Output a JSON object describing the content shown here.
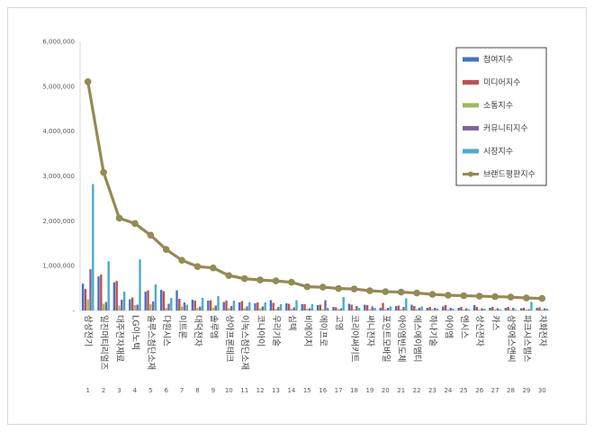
{
  "chart_data": {
    "type": "bar",
    "title": "",
    "xlabel": "",
    "ylabel": "",
    "ylim": [
      0,
      6000000
    ],
    "yticks": [
      0,
      1000000,
      2000000,
      3000000,
      4000000,
      5000000,
      6000000
    ],
    "ytick_labels": [
      "-",
      "1,000,000",
      "2,000,000",
      "3,000,000",
      "4,000,000",
      "5,000,000",
      "6,000,000"
    ],
    "grid": false,
    "legend_position": "top-right",
    "ranks": [
      "1",
      "2",
      "3",
      "4",
      "5",
      "6",
      "7",
      "8",
      "9",
      "10",
      "11",
      "12",
      "13",
      "14",
      "15",
      "16",
      "17",
      "18",
      "19",
      "20",
      "21",
      "22",
      "23",
      "24",
      "25",
      "26",
      "27",
      "28",
      "29",
      "30"
    ],
    "categories": [
      "삼성전기",
      "일진머티리얼즈",
      "대주전자재료",
      "LG이노텍",
      "솔루스첨단소재",
      "다원시스",
      "이트론",
      "대덕전자",
      "솔루엠",
      "상아프론테크",
      "이녹스첨단소재",
      "코나아이",
      "우리기술",
      "심텍",
      "비에이치",
      "에이프로",
      "고영",
      "코리아써키트",
      "써니전자",
      "포인트모바일",
      "아이엠반도체",
      "에스에이엠티",
      "하나기술",
      "아이엠",
      "엔시스",
      "상신전자",
      "카스",
      "삼영에스앤씨",
      "파크시스템스",
      "자화전자"
    ],
    "series": [
      {
        "name": "참여지수",
        "color": "#4472c4",
        "kind": "bar",
        "values": [
          600000,
          760000,
          630000,
          250000,
          420000,
          460000,
          450000,
          240000,
          220000,
          190000,
          180000,
          160000,
          230000,
          160000,
          140000,
          120000,
          80000,
          150000,
          130000,
          60000,
          100000,
          130000,
          60000,
          90000,
          60000,
          120000,
          60000,
          60000,
          50000,
          60000
        ]
      },
      {
        "name": "미디어지수",
        "color": "#c0504d",
        "kind": "bar",
        "values": [
          480000,
          800000,
          660000,
          290000,
          450000,
          430000,
          260000,
          220000,
          230000,
          220000,
          210000,
          180000,
          170000,
          150000,
          140000,
          130000,
          70000,
          130000,
          120000,
          170000,
          110000,
          100000,
          80000,
          120000,
          80000,
          80000,
          80000,
          80000,
          60000,
          70000
        ]
      },
      {
        "name": "소통지수",
        "color": "#9bbb59",
        "kind": "bar",
        "values": [
          250000,
          150000,
          110000,
          120000,
          140000,
          60000,
          90000,
          60000,
          60000,
          50000,
          50000,
          50000,
          40000,
          40000,
          40000,
          30000,
          30000,
          30000,
          30000,
          30000,
          30000,
          30000,
          30000,
          20000,
          20000,
          20000,
          20000,
          20000,
          20000,
          20000
        ]
      },
      {
        "name": "커뮤니티지수",
        "color": "#8064a2",
        "kind": "bar",
        "values": [
          920000,
          190000,
          240000,
          130000,
          200000,
          150000,
          180000,
          90000,
          110000,
          100000,
          90000,
          90000,
          80000,
          70000,
          50000,
          230000,
          50000,
          100000,
          90000,
          60000,
          80000,
          60000,
          60000,
          60000,
          50000,
          50000,
          50000,
          60000,
          30000,
          50000
        ]
      },
      {
        "name": "시장지수",
        "color": "#4bacc6",
        "kind": "bar",
        "values": [
          2820000,
          1100000,
          420000,
          1140000,
          580000,
          280000,
          130000,
          280000,
          320000,
          220000,
          180000,
          180000,
          140000,
          230000,
          140000,
          60000,
          300000,
          60000,
          60000,
          90000,
          270000,
          90000,
          40000,
          40000,
          30000,
          40000,
          30000,
          20000,
          190000,
          40000
        ]
      },
      {
        "name": "브랜드평판지수",
        "color": "#948a54",
        "kind": "line",
        "values": [
          5100000,
          3080000,
          2060000,
          1940000,
          1680000,
          1360000,
          1120000,
          980000,
          950000,
          780000,
          710000,
          680000,
          660000,
          630000,
          530000,
          520000,
          490000,
          480000,
          440000,
          420000,
          410000,
          390000,
          360000,
          340000,
          330000,
          320000,
          310000,
          300000,
          280000,
          270000
        ]
      }
    ]
  }
}
